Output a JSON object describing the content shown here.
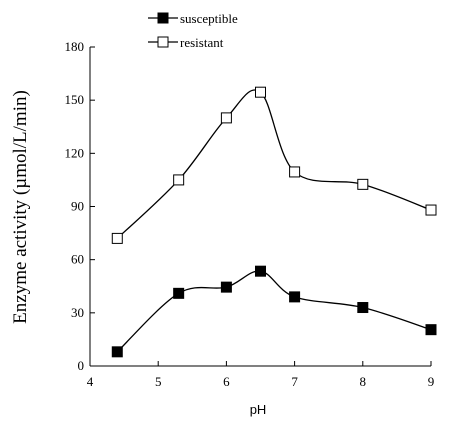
{
  "chart_data": {
    "type": "line",
    "xlabel": "pH",
    "ylabel": "Enzyme activity (µmol/L/min)",
    "xlim": [
      4,
      9
    ],
    "ylim": [
      0,
      180
    ],
    "x_ticks": [
      "4",
      "5",
      "6",
      "7",
      "8",
      "9"
    ],
    "y_ticks": [
      "0",
      "30",
      "60",
      "90",
      "120",
      "150",
      "180"
    ],
    "grid": false,
    "legend_position": "top-center",
    "series": [
      {
        "name": "susceptible",
        "marker": "filled-square",
        "color": "#000000",
        "x": [
          4.4,
          5.3,
          6.0,
          6.5,
          7.0,
          8.0,
          9.0
        ],
        "y": [
          8,
          41,
          44.5,
          53.5,
          39,
          33,
          20.5
        ]
      },
      {
        "name": "resistant",
        "marker": "open-square",
        "color": "#000000",
        "x": [
          4.4,
          5.3,
          6.0,
          6.5,
          7.0,
          8.0,
          9.0
        ],
        "y": [
          72,
          105,
          140,
          154.5,
          109.5,
          102.5,
          88
        ]
      }
    ]
  }
}
